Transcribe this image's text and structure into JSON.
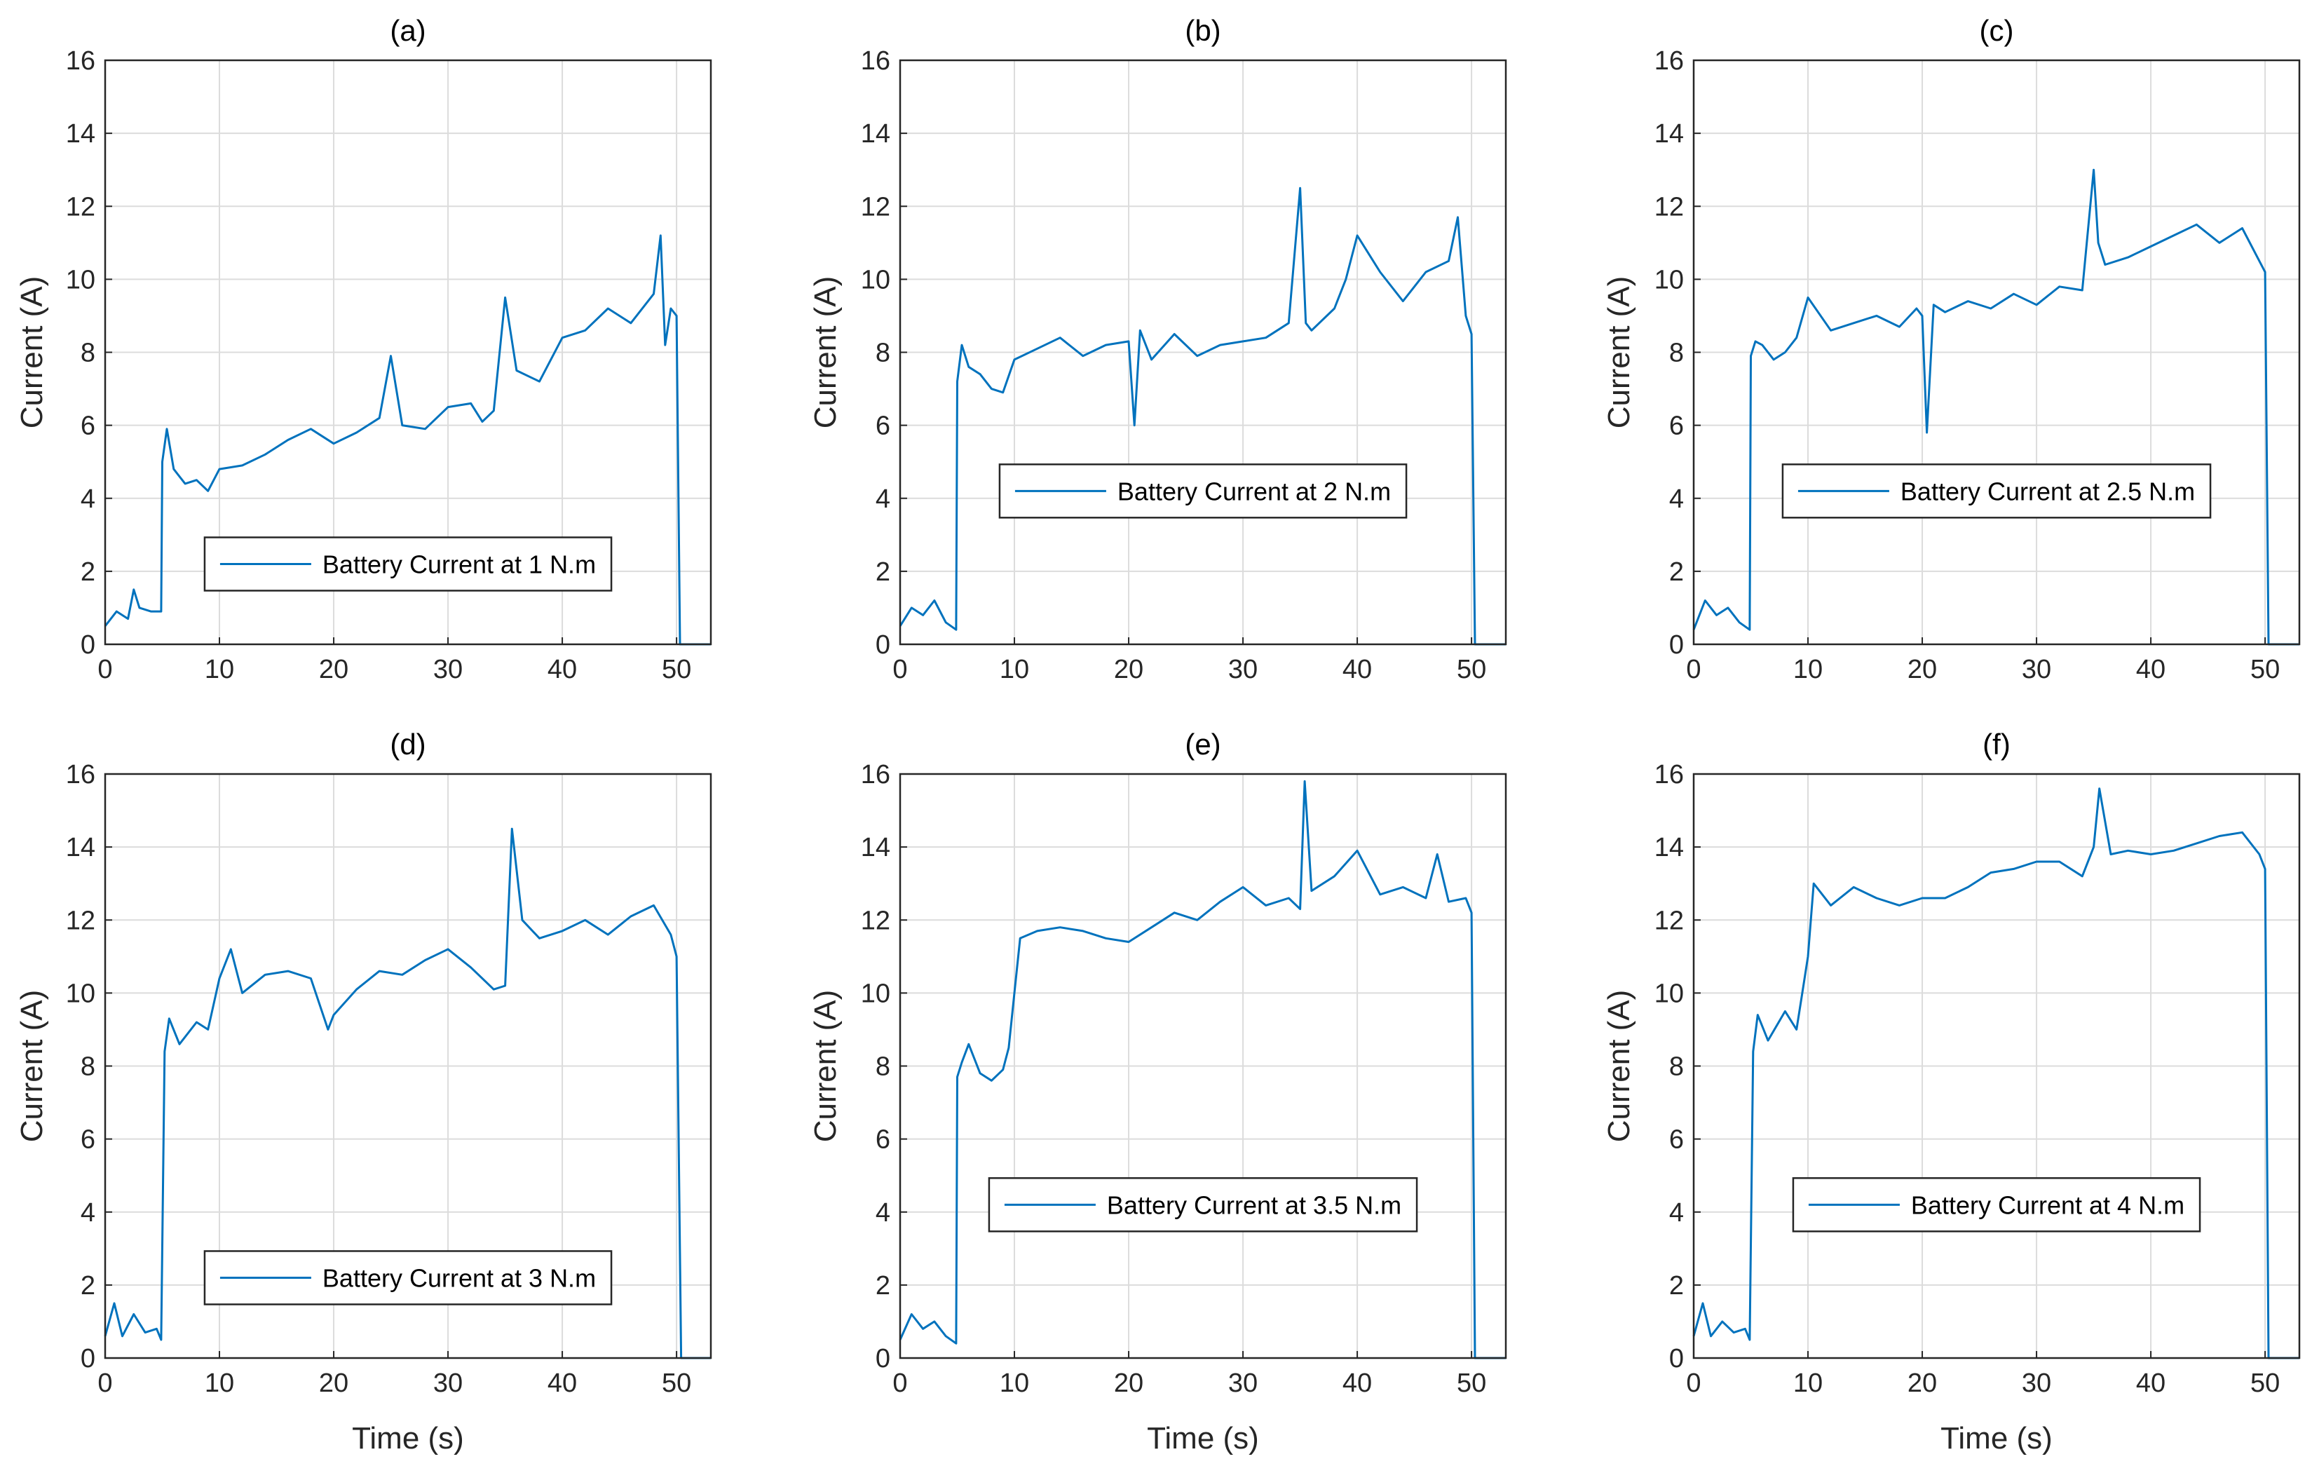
{
  "colors": {
    "series": "#0072BD",
    "grid": "#dcdcdc",
    "axis": "#262626",
    "background": "#ffffff"
  },
  "chart_data": [
    {
      "type": "line",
      "title": "(a)",
      "xlabel": "",
      "ylabel": "Current (A)",
      "xlim": [
        0,
        53
      ],
      "ylim": [
        0,
        16
      ],
      "xticks": [
        "0",
        "10",
        "20",
        "30",
        "40",
        "50"
      ],
      "yticks": [
        "0",
        "2",
        "4",
        "6",
        "8",
        "10",
        "12",
        "14",
        "16"
      ],
      "grid": true,
      "legend_position": "lower-center",
      "series": [
        {
          "name": "Battery Current at 1 N.m",
          "x": [
            0,
            1,
            2,
            2.5,
            3,
            4,
            4.9,
            5,
            5.4,
            6,
            7,
            8,
            9,
            10,
            12,
            14,
            16,
            18,
            20,
            22,
            24,
            25,
            26,
            28,
            30,
            32,
            33,
            34,
            35,
            36,
            38,
            40,
            42,
            44,
            46,
            48,
            48.6,
            49,
            49.5,
            50,
            50.3,
            53
          ],
          "y": [
            0.5,
            0.9,
            0.7,
            1.5,
            1.0,
            0.9,
            0.9,
            5.0,
            5.9,
            4.8,
            4.4,
            4.5,
            4.2,
            4.8,
            4.9,
            5.2,
            5.6,
            5.9,
            5.5,
            5.8,
            6.2,
            7.9,
            6.0,
            5.9,
            6.5,
            6.6,
            6.1,
            6.4,
            9.5,
            7.5,
            7.2,
            8.4,
            8.6,
            9.2,
            8.8,
            9.6,
            11.2,
            8.2,
            9.2,
            9.0,
            0.0,
            0.0
          ]
        }
      ]
    },
    {
      "type": "line",
      "title": "(b)",
      "xlabel": "",
      "ylabel": "Current (A)",
      "xlim": [
        0,
        53
      ],
      "ylim": [
        0,
        16
      ],
      "xticks": [
        "0",
        "10",
        "20",
        "30",
        "40",
        "50"
      ],
      "yticks": [
        "0",
        "2",
        "4",
        "6",
        "8",
        "10",
        "12",
        "14",
        "16"
      ],
      "grid": true,
      "legend_position": "middle-center",
      "series": [
        {
          "name": "Battery Current at 2 N.m",
          "x": [
            0,
            1,
            2,
            3,
            4,
            4.9,
            5,
            5.4,
            6,
            7,
            8,
            9,
            10,
            12,
            14,
            16,
            18,
            20,
            20.5,
            21,
            22,
            24,
            26,
            28,
            30,
            32,
            34,
            35,
            35.5,
            36,
            38,
            39,
            40,
            42,
            44,
            46,
            48,
            48.8,
            49.5,
            50,
            50.3,
            53
          ],
          "y": [
            0.5,
            1.0,
            0.8,
            1.2,
            0.6,
            0.4,
            7.2,
            8.2,
            7.6,
            7.4,
            7.0,
            6.9,
            7.8,
            8.1,
            8.4,
            7.9,
            8.2,
            8.3,
            6.0,
            8.6,
            7.8,
            8.5,
            7.9,
            8.2,
            8.3,
            8.4,
            8.8,
            12.5,
            8.8,
            8.6,
            9.2,
            10.0,
            11.2,
            10.2,
            9.4,
            10.2,
            10.5,
            11.7,
            9.0,
            8.5,
            0.0,
            0.0
          ]
        }
      ]
    },
    {
      "type": "line",
      "title": "(c)",
      "xlabel": "",
      "ylabel": "Current (A)",
      "xlim": [
        0,
        53
      ],
      "ylim": [
        0,
        16
      ],
      "xticks": [
        "0",
        "10",
        "20",
        "30",
        "40",
        "50"
      ],
      "yticks": [
        "0",
        "2",
        "4",
        "6",
        "8",
        "10",
        "12",
        "14",
        "16"
      ],
      "grid": true,
      "legend_position": "middle-center",
      "series": [
        {
          "name": "Battery Current at 2.5 N.m",
          "x": [
            0,
            1,
            2,
            3,
            4,
            4.9,
            5,
            5.4,
            6,
            7,
            8,
            9,
            10,
            12,
            14,
            16,
            18,
            19.5,
            20,
            20.4,
            21,
            22,
            24,
            26,
            28,
            30,
            32,
            34,
            35,
            35.4,
            36,
            38,
            40,
            42,
            44,
            46,
            48,
            49.5,
            50,
            50.3,
            53
          ],
          "y": [
            0.4,
            1.2,
            0.8,
            1.0,
            0.6,
            0.4,
            7.9,
            8.3,
            8.2,
            7.8,
            8.0,
            8.4,
            9.5,
            8.6,
            8.8,
            9.0,
            8.7,
            9.2,
            9.0,
            5.8,
            9.3,
            9.1,
            9.4,
            9.2,
            9.6,
            9.3,
            9.8,
            9.7,
            13.0,
            11.0,
            10.4,
            10.6,
            10.9,
            11.2,
            11.5,
            11.0,
            11.4,
            10.5,
            10.2,
            0.0,
            0.0
          ]
        }
      ]
    },
    {
      "type": "line",
      "title": "(d)",
      "xlabel": "Time (s)",
      "ylabel": "Current (A)",
      "xlim": [
        0,
        53
      ],
      "ylim": [
        0,
        16
      ],
      "xticks": [
        "0",
        "10",
        "20",
        "30",
        "40",
        "50"
      ],
      "yticks": [
        "0",
        "2",
        "4",
        "6",
        "8",
        "10",
        "12",
        "14",
        "16"
      ],
      "grid": true,
      "legend_position": "lower-center",
      "series": [
        {
          "name": "Battery Current at 3 N.m",
          "x": [
            0,
            0.8,
            1.5,
            2.5,
            3.5,
            4.5,
            4.9,
            5.2,
            5.6,
            6.5,
            8,
            9,
            10,
            11,
            12,
            14,
            16,
            18,
            19.5,
            20,
            22,
            24,
            26,
            28,
            30,
            32,
            34,
            35,
            35.6,
            36.5,
            38,
            40,
            42,
            44,
            46,
            48,
            49.5,
            50,
            50.4,
            53
          ],
          "y": [
            0.6,
            1.5,
            0.6,
            1.2,
            0.7,
            0.8,
            0.5,
            8.4,
            9.3,
            8.6,
            9.2,
            9.0,
            10.4,
            11.2,
            10.0,
            10.5,
            10.6,
            10.4,
            9.0,
            9.4,
            10.1,
            10.6,
            10.5,
            10.9,
            11.2,
            10.7,
            10.1,
            10.2,
            14.5,
            12.0,
            11.5,
            11.7,
            12.0,
            11.6,
            12.1,
            12.4,
            11.6,
            11.0,
            0.0,
            0.0
          ]
        }
      ]
    },
    {
      "type": "line",
      "title": "(e)",
      "xlabel": "Time (s)",
      "ylabel": "Current (A)",
      "xlim": [
        0,
        53
      ],
      "ylim": [
        0,
        16
      ],
      "xticks": [
        "0",
        "10",
        "20",
        "30",
        "40",
        "50"
      ],
      "yticks": [
        "0",
        "2",
        "4",
        "6",
        "8",
        "10",
        "12",
        "14",
        "16"
      ],
      "grid": true,
      "legend_position": "middle-center",
      "series": [
        {
          "name": "Battery Current at 3.5 N.m",
          "x": [
            0,
            1,
            2,
            3,
            4,
            4.9,
            5,
            5.4,
            6,
            7,
            8,
            9,
            9.5,
            10,
            10.5,
            12,
            14,
            16,
            18,
            20,
            22,
            24,
            26,
            28,
            30,
            32,
            34,
            35,
            35.4,
            36,
            38,
            40,
            42,
            44,
            46,
            47,
            48,
            49.5,
            50,
            50.3,
            53
          ],
          "y": [
            0.5,
            1.2,
            0.8,
            1.0,
            0.6,
            0.4,
            7.7,
            8.1,
            8.6,
            7.8,
            7.6,
            7.9,
            8.5,
            10.0,
            11.5,
            11.7,
            11.8,
            11.7,
            11.5,
            11.4,
            11.8,
            12.2,
            12.0,
            12.5,
            12.9,
            12.4,
            12.6,
            12.3,
            15.8,
            12.8,
            13.2,
            13.9,
            12.7,
            12.9,
            12.6,
            13.8,
            12.5,
            12.6,
            12.2,
            0.0,
            0.0
          ]
        }
      ]
    },
    {
      "type": "line",
      "title": "(f)",
      "xlabel": "Time (s)",
      "ylabel": "Current (A)",
      "xlim": [
        0,
        53
      ],
      "ylim": [
        0,
        16
      ],
      "xticks": [
        "0",
        "10",
        "20",
        "30",
        "40",
        "50"
      ],
      "yticks": [
        "0",
        "2",
        "4",
        "6",
        "8",
        "10",
        "12",
        "14",
        "16"
      ],
      "grid": true,
      "legend_position": "middle-center",
      "series": [
        {
          "name": "Battery Current at 4 N.m",
          "x": [
            0,
            0.8,
            1.5,
            2.5,
            3.5,
            4.5,
            4.9,
            5.2,
            5.6,
            6.5,
            8,
            9,
            9.5,
            10,
            10.5,
            12,
            14,
            16,
            18,
            20,
            22,
            24,
            26,
            28,
            30,
            32,
            34,
            35,
            35.5,
            36.5,
            38,
            40,
            42,
            44,
            46,
            48,
            49.5,
            50,
            50.3,
            53
          ],
          "y": [
            0.6,
            1.5,
            0.6,
            1.0,
            0.7,
            0.8,
            0.5,
            8.4,
            9.4,
            8.7,
            9.5,
            9.0,
            10.0,
            11.0,
            13.0,
            12.4,
            12.9,
            12.6,
            12.4,
            12.6,
            12.6,
            12.9,
            13.3,
            13.4,
            13.6,
            13.6,
            13.2,
            14.0,
            15.6,
            13.8,
            13.9,
            13.8,
            13.9,
            14.1,
            14.3,
            14.4,
            13.8,
            13.4,
            0.0,
            0.0
          ]
        }
      ]
    }
  ]
}
